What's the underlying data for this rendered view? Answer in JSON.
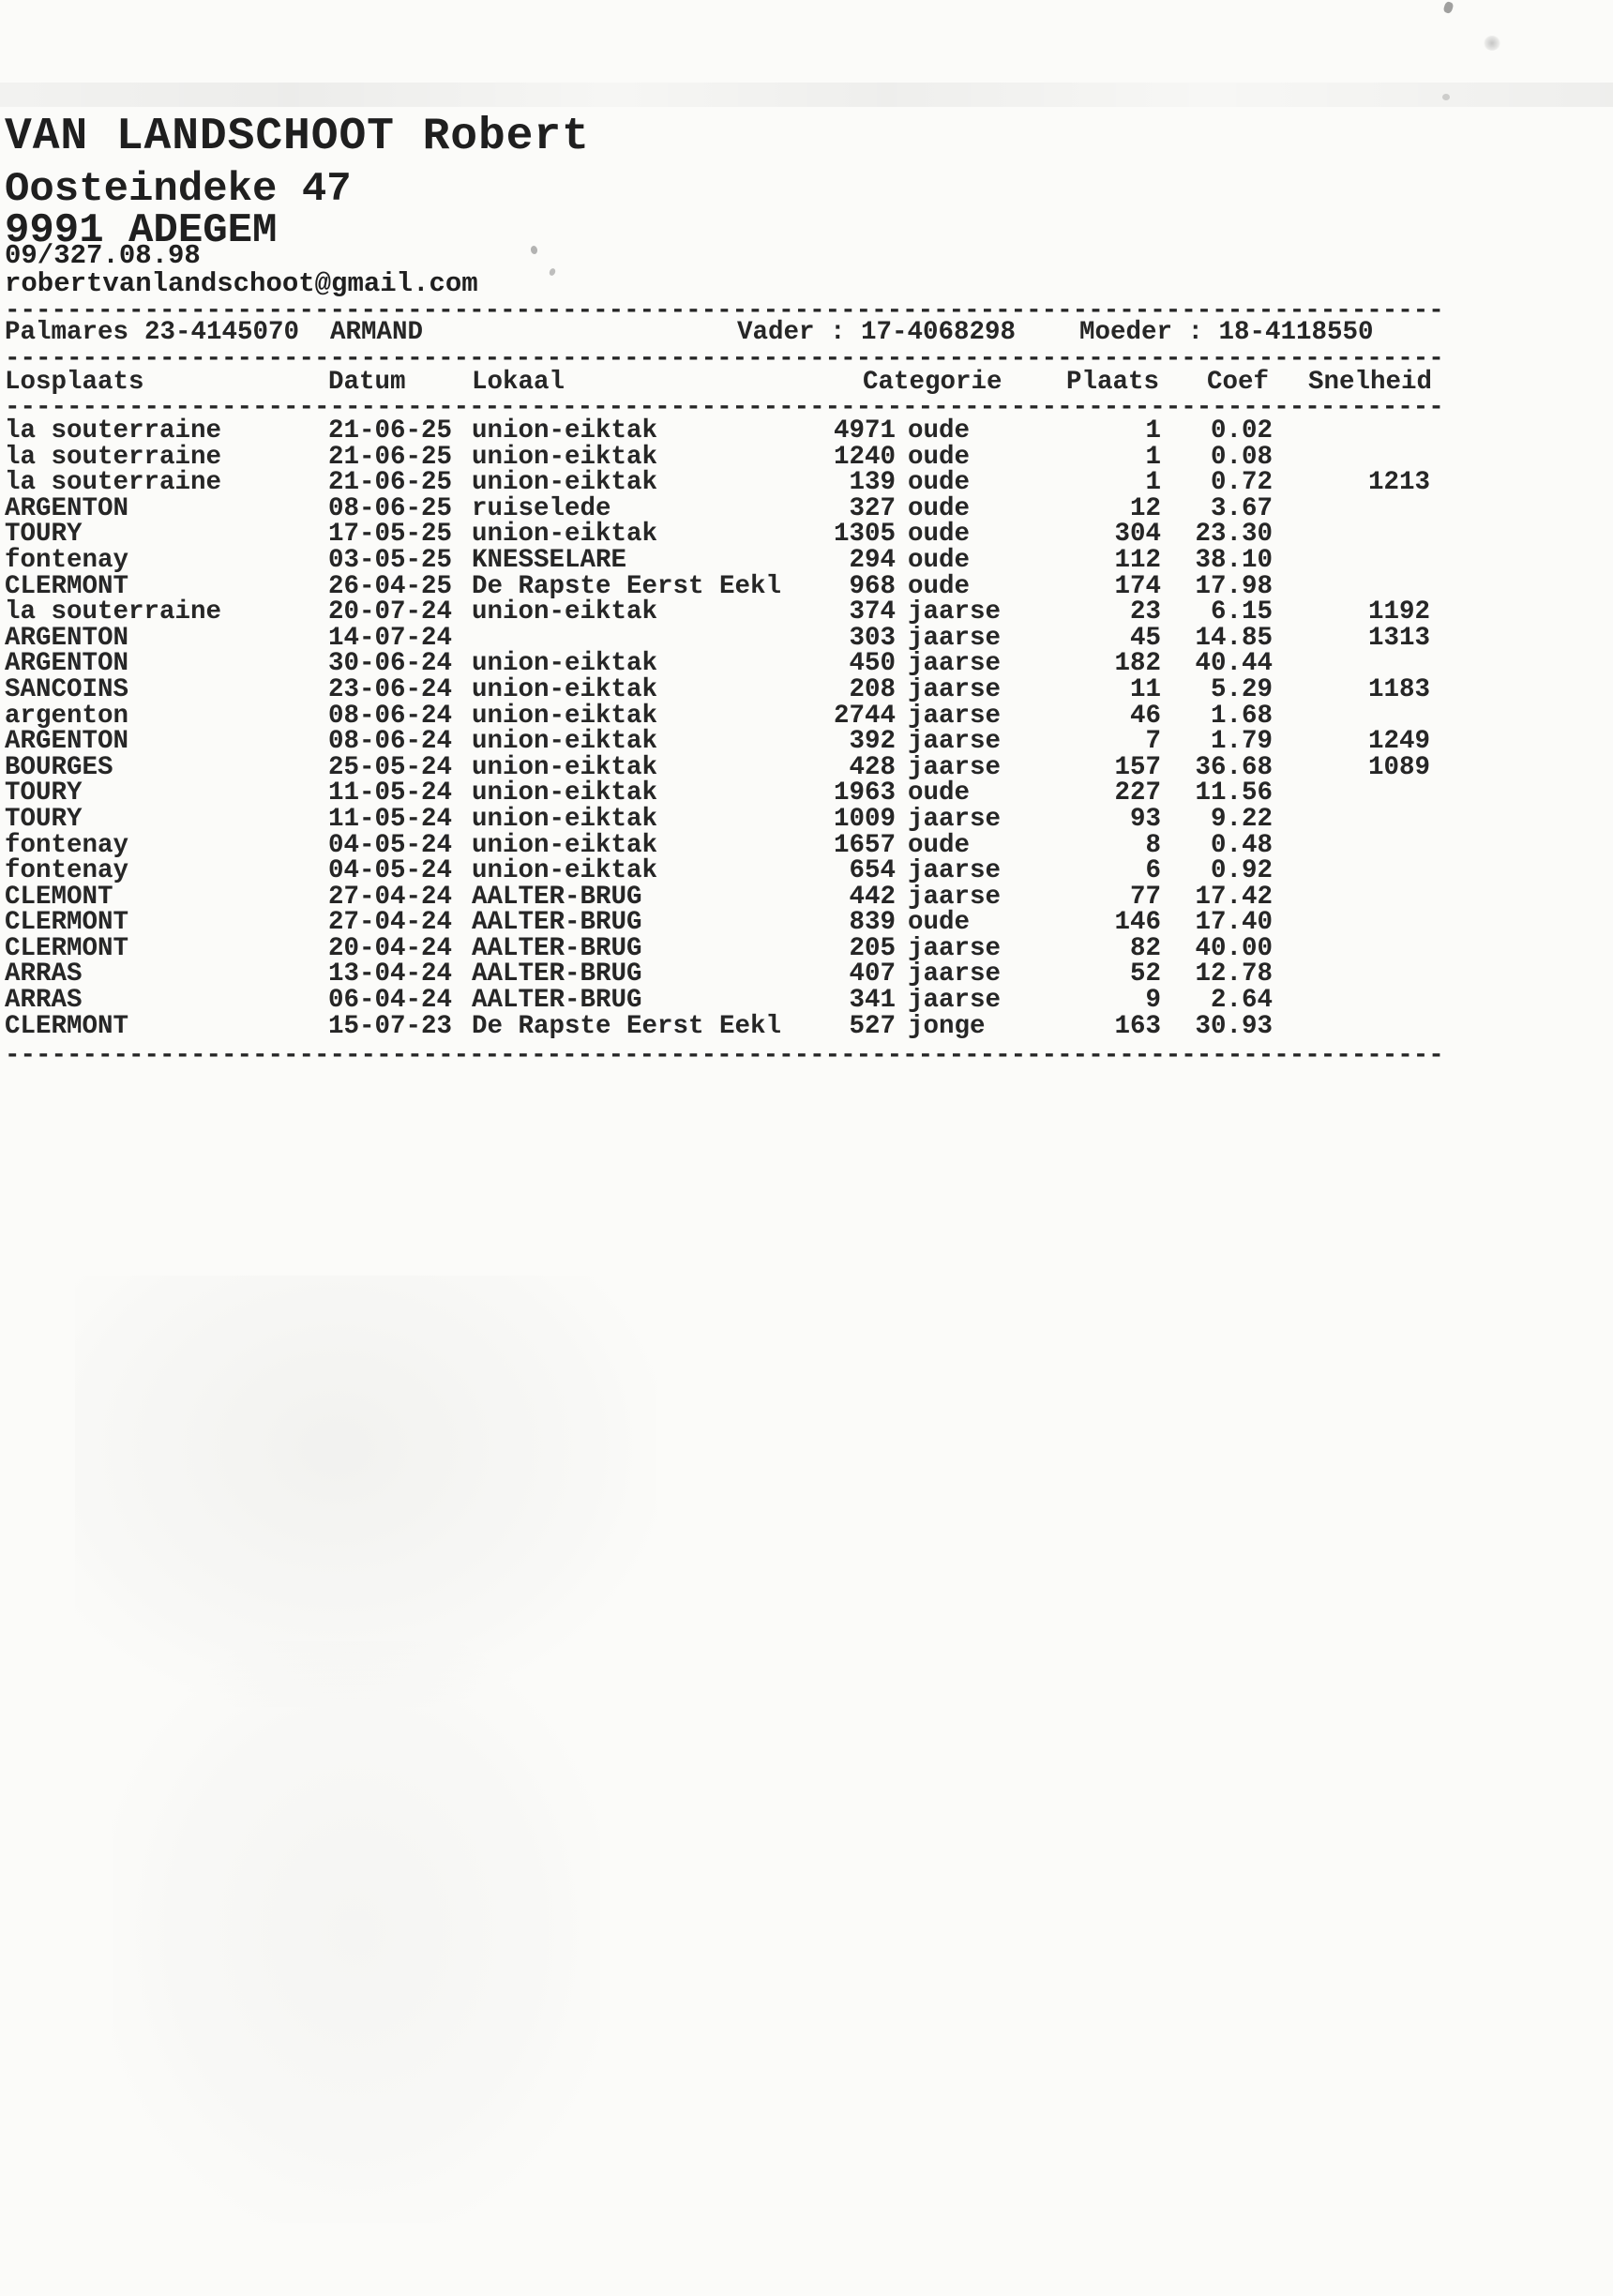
{
  "page": {
    "owner": {
      "name": "VAN LANDSCHOOT Robert",
      "street": "Oosteindeke 47",
      "city": "9991 ADEGEM",
      "phone": "09/327.08.98",
      "email": "robertvanlandschoot@gmail.com"
    },
    "palmares": {
      "label": "Palmares",
      "ring": "23-4145070",
      "bird_name": "ARMAND",
      "vader": "Vader : 17-4068298",
      "moeder": "Moeder : 18-4118550"
    },
    "separator": "---------------------------------------------------------------------------------------------",
    "table": {
      "headers": {
        "losplaats": "Losplaats",
        "datum": "Datum",
        "lokaal": "Lokaal",
        "categorie": "Categorie",
        "plaats": "Plaats",
        "coef": "Coef",
        "snelheid": "Snelheid"
      },
      "rows": [
        {
          "losplaats": "la souterraine",
          "datum": "21-06-25",
          "lokaal": "union-eiktak",
          "aantal": "4971",
          "categorie": "oude",
          "plaats": "1",
          "coef": "0.02",
          "snelheid": ""
        },
        {
          "losplaats": "la souterraine",
          "datum": "21-06-25",
          "lokaal": "union-eiktak",
          "aantal": "1240",
          "categorie": "oude",
          "plaats": "1",
          "coef": "0.08",
          "snelheid": ""
        },
        {
          "losplaats": "la souterraine",
          "datum": "21-06-25",
          "lokaal": "union-eiktak",
          "aantal": "139",
          "categorie": "oude",
          "plaats": "1",
          "coef": "0.72",
          "snelheid": "1213"
        },
        {
          "losplaats": "ARGENTON",
          "datum": "08-06-25",
          "lokaal": "ruiselede",
          "aantal": "327",
          "categorie": "oude",
          "plaats": "12",
          "coef": "3.67",
          "snelheid": ""
        },
        {
          "losplaats": "TOURY",
          "datum": "17-05-25",
          "lokaal": "union-eiktak",
          "aantal": "1305",
          "categorie": "oude",
          "plaats": "304",
          "coef": "23.30",
          "snelheid": ""
        },
        {
          "losplaats": "fontenay",
          "datum": "03-05-25",
          "lokaal": "KNESSELARE",
          "aantal": "294",
          "categorie": "oude",
          "plaats": "112",
          "coef": "38.10",
          "snelheid": ""
        },
        {
          "losplaats": "CLERMONT",
          "datum": "26-04-25",
          "lokaal": "De Rapste Eerst Eekl",
          "aantal": "968",
          "categorie": "oude",
          "plaats": "174",
          "coef": "17.98",
          "snelheid": ""
        },
        {
          "losplaats": "la souterraine",
          "datum": "20-07-24",
          "lokaal": "union-eiktak",
          "aantal": "374",
          "categorie": "jaarse",
          "plaats": "23",
          "coef": "6.15",
          "snelheid": "1192"
        },
        {
          "losplaats": "ARGENTON",
          "datum": "14-07-24",
          "lokaal": "",
          "aantal": "303",
          "categorie": "jaarse",
          "plaats": "45",
          "coef": "14.85",
          "snelheid": "1313"
        },
        {
          "losplaats": "ARGENTON",
          "datum": "30-06-24",
          "lokaal": "union-eiktak",
          "aantal": "450",
          "categorie": "jaarse",
          "plaats": "182",
          "coef": "40.44",
          "snelheid": ""
        },
        {
          "losplaats": "SANCOINS",
          "datum": "23-06-24",
          "lokaal": "union-eiktak",
          "aantal": "208",
          "categorie": "jaarse",
          "plaats": "11",
          "coef": "5.29",
          "snelheid": "1183"
        },
        {
          "losplaats": "argenton",
          "datum": "08-06-24",
          "lokaal": "union-eiktak",
          "aantal": "2744",
          "categorie": "jaarse",
          "plaats": "46",
          "coef": "1.68",
          "snelheid": ""
        },
        {
          "losplaats": "ARGENTON",
          "datum": "08-06-24",
          "lokaal": "union-eiktak",
          "aantal": "392",
          "categorie": "jaarse",
          "plaats": "7",
          "coef": "1.79",
          "snelheid": "1249"
        },
        {
          "losplaats": "BOURGES",
          "datum": "25-05-24",
          "lokaal": "union-eiktak",
          "aantal": "428",
          "categorie": "jaarse",
          "plaats": "157",
          "coef": "36.68",
          "snelheid": "1089"
        },
        {
          "losplaats": "TOURY",
          "datum": "11-05-24",
          "lokaal": "union-eiktak",
          "aantal": "1963",
          "categorie": "oude",
          "plaats": "227",
          "coef": "11.56",
          "snelheid": ""
        },
        {
          "losplaats": "TOURY",
          "datum": "11-05-24",
          "lokaal": "union-eiktak",
          "aantal": "1009",
          "categorie": "jaarse",
          "plaats": "93",
          "coef": "9.22",
          "snelheid": ""
        },
        {
          "losplaats": "fontenay",
          "datum": "04-05-24",
          "lokaal": "union-eiktak",
          "aantal": "1657",
          "categorie": "oude",
          "plaats": "8",
          "coef": "0.48",
          "snelheid": ""
        },
        {
          "losplaats": "fontenay",
          "datum": "04-05-24",
          "lokaal": "union-eiktak",
          "aantal": "654",
          "categorie": "jaarse",
          "plaats": "6",
          "coef": "0.92",
          "snelheid": ""
        },
        {
          "losplaats": "CLEMONT",
          "datum": "27-04-24",
          "lokaal": "AALTER-BRUG",
          "aantal": "442",
          "categorie": "jaarse",
          "plaats": "77",
          "coef": "17.42",
          "snelheid": ""
        },
        {
          "losplaats": "CLERMONT",
          "datum": "27-04-24",
          "lokaal": "AALTER-BRUG",
          "aantal": "839",
          "categorie": "oude",
          "plaats": "146",
          "coef": "17.40",
          "snelheid": ""
        },
        {
          "losplaats": "CLERMONT",
          "datum": "20-04-24",
          "lokaal": "AALTER-BRUG",
          "aantal": "205",
          "categorie": "jaarse",
          "plaats": "82",
          "coef": "40.00",
          "snelheid": ""
        },
        {
          "losplaats": "ARRAS",
          "datum": "13-04-24",
          "lokaal": "AALTER-BRUG",
          "aantal": "407",
          "categorie": "jaarse",
          "plaats": "52",
          "coef": "12.78",
          "snelheid": ""
        },
        {
          "losplaats": "ARRAS",
          "datum": "06-04-24",
          "lokaal": "AALTER-BRUG",
          "aantal": "341",
          "categorie": "jaarse",
          "plaats": "9",
          "coef": "2.64",
          "snelheid": ""
        },
        {
          "losplaats": "CLERMONT",
          "datum": "15-07-23",
          "lokaal": "De Rapste Eerst Eekl",
          "aantal": "527",
          "categorie": "jonge",
          "plaats": "163",
          "coef": "30.93",
          "snelheid": ""
        }
      ]
    }
  }
}
